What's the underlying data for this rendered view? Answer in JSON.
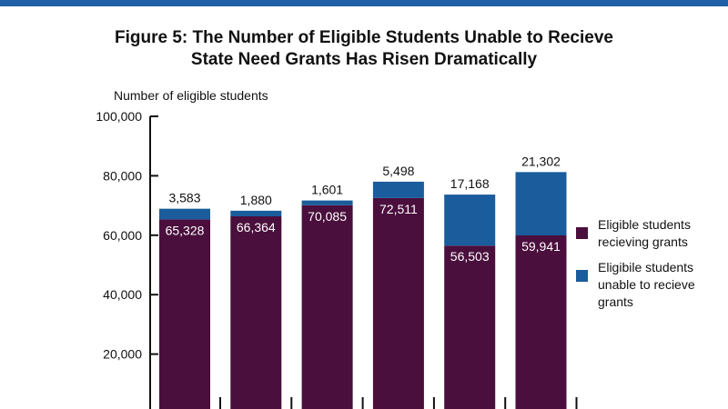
{
  "header": {
    "title_line1": "Figure 5: The Number of Eligible Students Unable to Recieve",
    "title_line2": "State Need Grants Has Risen Dramatically"
  },
  "chart_data": {
    "type": "bar",
    "stacked": true,
    "title": "Figure 5: The Number of Eligible Students Unable to Recieve State Need Grants Has Risen Dramatically",
    "ylabel": "Number of eligible students",
    "xlabel": "",
    "ylim": [
      0,
      100000
    ],
    "yticks": [
      20000,
      40000,
      60000,
      80000,
      100000
    ],
    "ytick_labels": [
      "20,000",
      "40,000",
      "60,000",
      "80,000",
      "100,000"
    ],
    "categories": [
      "",
      "",
      "",
      "",
      "",
      ""
    ],
    "series": [
      {
        "name": "Eligible students recieving grants",
        "legend_lines": [
          "Eligible students",
          "recieving grants"
        ],
        "color": "#4a0f3c",
        "values": [
          65328,
          66364,
          70085,
          72511,
          56503,
          59941
        ],
        "labels": [
          "65,328",
          "66,364",
          "70,085",
          "72,511",
          "56,503",
          "59,941"
        ]
      },
      {
        "name": "Eligibile students unable to recieve grants",
        "legend_lines": [
          "Eligibile students",
          "unable to recieve",
          "grants"
        ],
        "color": "#1a5c9c",
        "values": [
          3583,
          1880,
          1601,
          5498,
          17168,
          21302
        ],
        "labels": [
          "3,583",
          "1,880",
          "1,601",
          "5,498",
          "17,168",
          "21,302"
        ]
      }
    ],
    "legend_position": "right"
  }
}
